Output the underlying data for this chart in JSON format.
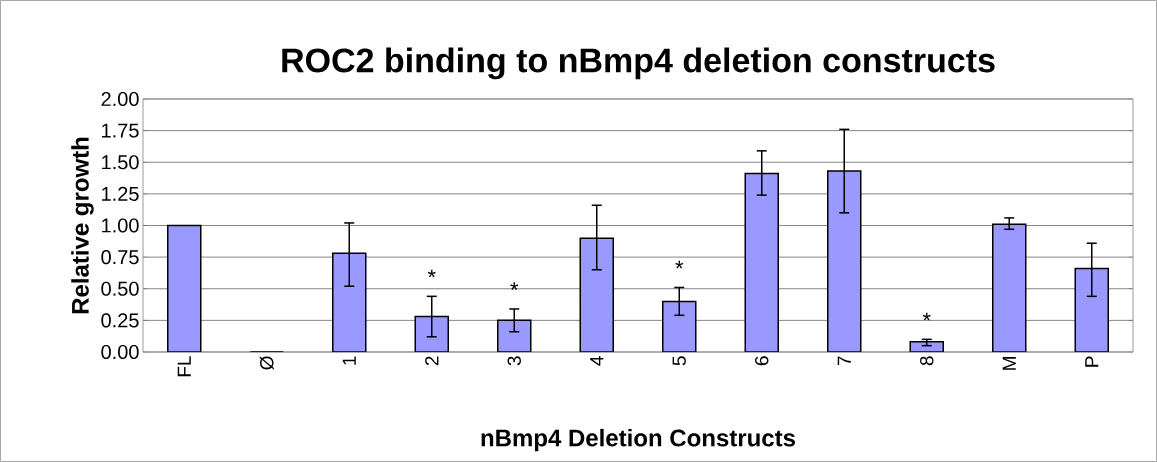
{
  "chart_data": {
    "type": "bar",
    "title": "ROC2 binding to nBmp4 deletion constructs",
    "xlabel": "nBmp4 Deletion Constructs",
    "ylabel": "Relative growth",
    "categories": [
      "FL",
      "Ø",
      "1",
      "2",
      "3",
      "4",
      "5",
      "6",
      "7",
      "8",
      "M",
      "P"
    ],
    "values": [
      1.0,
      0.0,
      0.78,
      0.28,
      0.25,
      0.9,
      0.4,
      1.41,
      1.43,
      0.08,
      1.01,
      0.66
    ],
    "errors": [
      null,
      null,
      [
        0.52,
        1.02
      ],
      [
        0.12,
        0.44
      ],
      [
        0.16,
        0.34
      ],
      [
        0.65,
        1.16
      ],
      [
        0.29,
        0.51
      ],
      [
        1.24,
        1.59
      ],
      [
        1.1,
        1.76
      ],
      [
        0.05,
        0.1
      ],
      [
        0.97,
        1.06
      ],
      [
        0.44,
        0.86
      ]
    ],
    "color": "#9999ff",
    "ylim": [
      0,
      2
    ],
    "yticks": [
      {
        "value": 0,
        "label": "0.00"
      },
      {
        "value": 0.25,
        "label": "0.25"
      },
      {
        "value": 0.5,
        "label": "0.50"
      },
      {
        "value": 0.75,
        "label": "0.75"
      },
      {
        "value": 1,
        "label": "1.00"
      },
      {
        "value": 1.25,
        "label": "1.25"
      },
      {
        "value": 1.5,
        "label": "1.50"
      },
      {
        "value": 1.75,
        "label": "1.75"
      },
      {
        "value": 2,
        "label": "2.00"
      }
    ],
    "grid": "y",
    "annotations": [
      "*",
      "*",
      "*",
      "*"
    ]
  }
}
